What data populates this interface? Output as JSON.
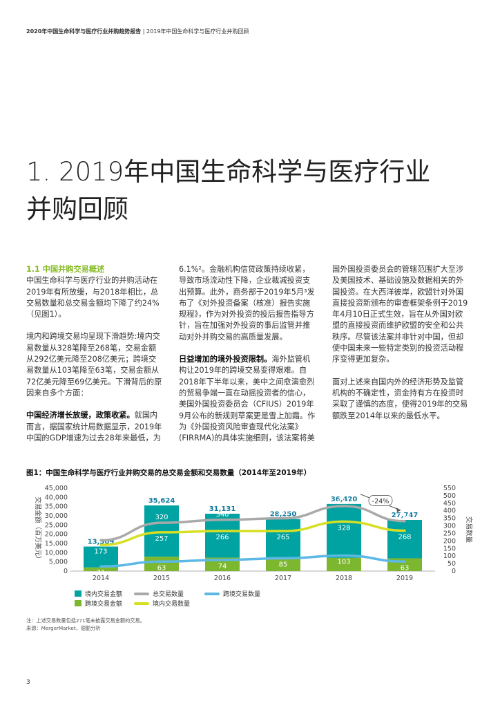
{
  "header": {
    "report": "2020年中国生命科学与医疗行业并购趋势报告",
    "sep": " | ",
    "section": "2019年中国生命科学与医疗行业并购回顾"
  },
  "title_line1": "1. 2019年中国生命科学与医疗行业",
  "title_line2": "并购回顾",
  "col1": {
    "subhead": "1.1 中国并购交易概述",
    "p1": "中国生命科学与医疗行业的并购活动在2019年有所放缓，与2018年相比，总交易数量和总交易金额均下降了约24%（见图1）。",
    "p2": "境内和跨境交易均呈现下滑趋势:境内交易数量从328笔降至268笔，交易金额从292亿美元降至208亿美元；跨境交易数量从103笔降至63笔，交易金额从72亿美元降至69亿美元。下滑背后的原因来自多个方面：",
    "p3_bold": "中国经济增长放缓，政策收紧。",
    "p3": "就国内而言，据国家统计局数据显示，2019年中国的GDP增速为过去28年来最低，为"
  },
  "col2": {
    "p1": "6.1%²。金融机构信贷政策持续收紧，导致市场流动性下降，企业裁减投资支出预算。此外，商务部于2019年5月³发布了《对外投资备案（核准）报告实施规程》，作为对外投资的投后报告指导方针，旨在加强对外投资的事后监管并推动对外并购交易的高质量发展。",
    "p2_bold": "日益增加的境外投资限制。",
    "p2": "海外监管机构让2019年的跨境交易变得艰难。自2018年下半年以来，美中之间愈演愈烈的贸易争端一直在动摇投资者的信心，美国外国投资委员会（CFIUS）2019年9月公布的新规则草案更是雪上加霜。作为《外国投资风险审查现代化法案》(FIRRMA)的具体实施细则，该法案将美"
  },
  "col3": {
    "p1": "国外国投资委员会的管辖范围扩大至涉及美国技术、基础设施及数据相关的外国投资。在大西洋彼岸，欧盟针对外国直接投资新颁布的审查框架条例于2019年4月10日正式生效，旨在从外国对欧盟的直接投资而维护欧盟的安全和公共秩序。尽管该法案并非针对中国，但却使中国未来一些特定类别的投资活动程序变得更加复杂。",
    "p2": "面对上述来自国内外的经济形势及监管机构的不确定性，资金持有方在投资时采取了谨慎的态度，使得2019年的交易额跌至2014年以来的最低水平。"
  },
  "figure_title": "图1：中国生命科学与医疗行业并购交易的总交易金额和交易数量（2014年至2019年）",
  "colors": {
    "teal": "#00A3A1",
    "green": "#7DB72F",
    "gray": "#A9A9A9",
    "lime": "#D7DF23",
    "blue": "#5CB8E4",
    "brand_green": "#86BC25"
  },
  "chart_data": {
    "type": "bar",
    "categories": [
      "2014",
      "2015",
      "2016",
      "2017",
      "2018",
      "2019"
    ],
    "y_left_label": "交易金额（百万美元）",
    "y_right_label": "交易数量",
    "y_left_ticks": [
      "0",
      "5,000",
      "10,000",
      "15,000",
      "20,000",
      "25,000",
      "30,000",
      "35,000",
      "40,000",
      "45,000"
    ],
    "y_right_ticks": [
      "0",
      "50",
      "100",
      "150",
      "200",
      "250",
      "300",
      "350",
      "400",
      "450",
      "500",
      "550"
    ],
    "ylim_left": [
      0,
      45000
    ],
    "ylim_right": [
      0,
      550
    ],
    "stacked_bars": [
      {
        "name": "境内交易金额",
        "color": "#00A3A1",
        "values": [
          11300,
          27800,
          23800,
          20700,
          29200,
          20800
        ]
      },
      {
        "name": "跨境交易金额",
        "color": "#7DB72F",
        "values": [
          2009,
          7824,
          7331,
          7550,
          7220,
          6947
        ]
      }
    ],
    "totals_labels": [
      "13,309",
      "35,624",
      "31,131",
      "28,250",
      "36,420",
      "27,747"
    ],
    "lines": [
      {
        "name": "总交易数量",
        "color": "#A9A9A9",
        "values": [
          204,
          320,
          340,
          350,
          431,
          331
        ],
        "label_above": true
      },
      {
        "name": "境内交易数量",
        "color": "#D7DF23",
        "values": [
          173,
          257,
          266,
          265,
          328,
          268
        ],
        "label_above": false
      },
      {
        "name": "跨境交易数量",
        "color": "#5CB8E4",
        "values": [
          31,
          63,
          74,
          85,
          103,
          63
        ],
        "label_above": false
      }
    ],
    "annotation": "-24%"
  },
  "legend": {
    "domestic_amount": "境内交易金额",
    "crossborder_amount": "跨境交易金额",
    "total_count": "总交易数量",
    "domestic_count": "境内交易数量",
    "crossborder_count": "跨境交易数量"
  },
  "note_line1": "注：上述交易数量包括271笔未披露交易金额的交易。",
  "note_line2": "来源：MergerMarket，德勤分析",
  "page_number": "3"
}
